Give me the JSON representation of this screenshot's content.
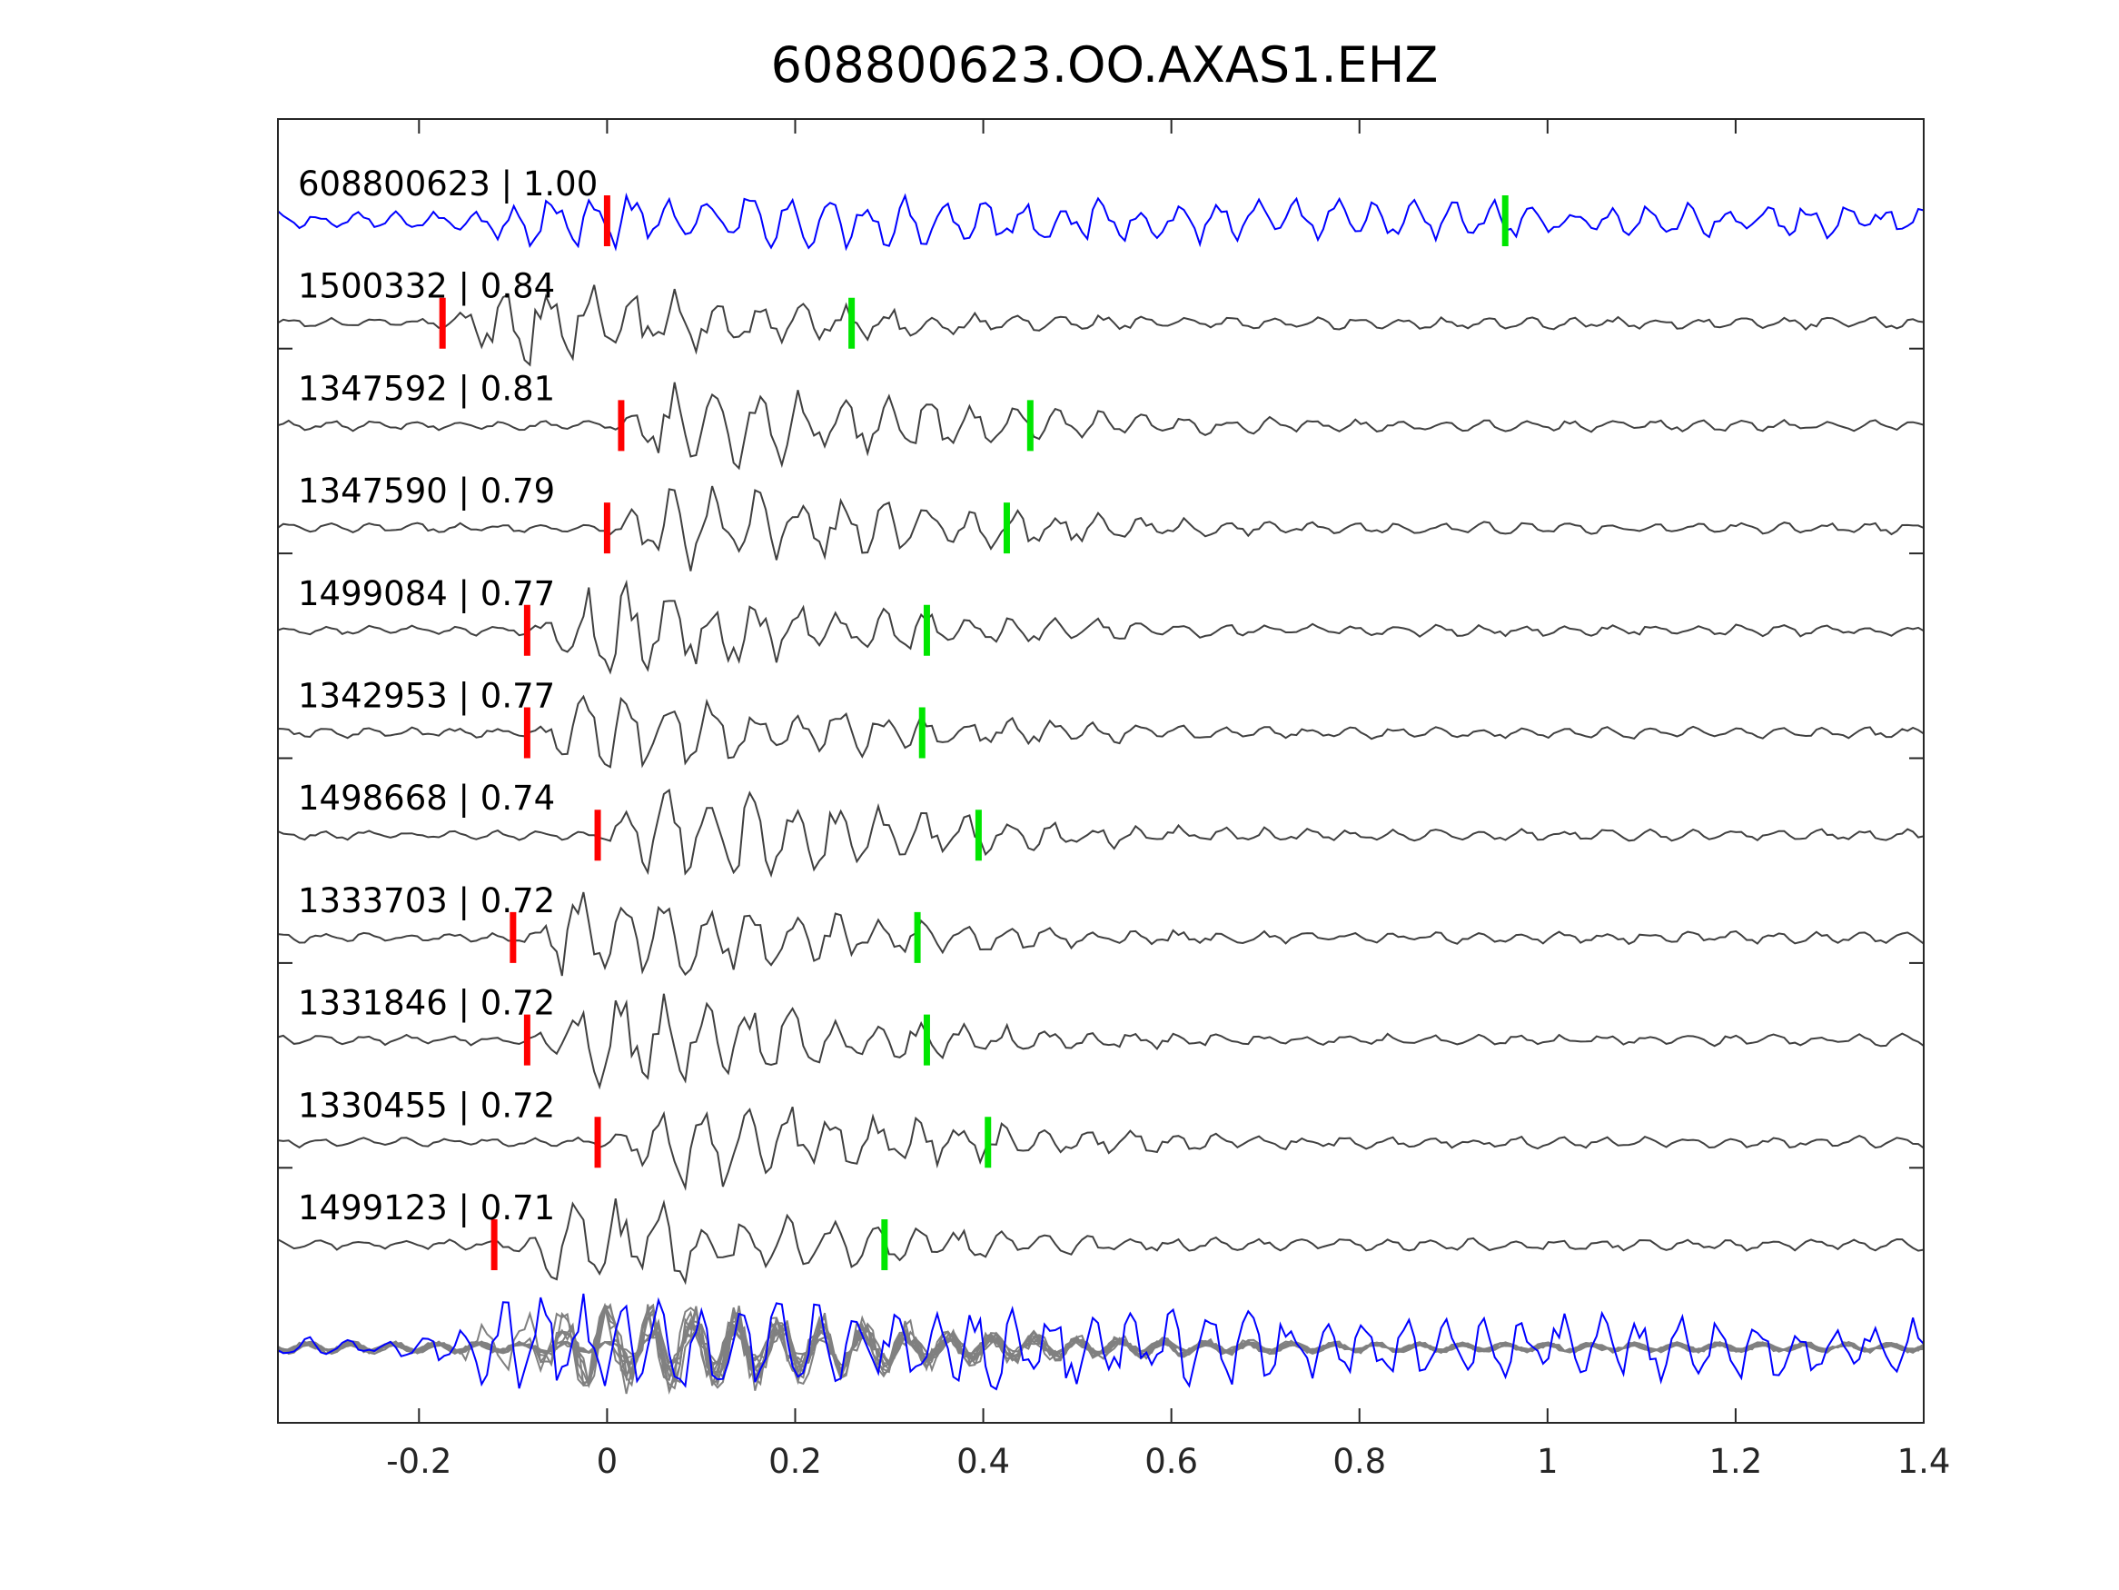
{
  "chart_data": {
    "type": "line",
    "title": "608800623.OO.AXAS1.EHZ",
    "xlabel": "",
    "ylabel": "",
    "xlim": [
      -0.35,
      1.4
    ],
    "xticks": [
      -0.2,
      0,
      0.2,
      0.4,
      0.6,
      0.8,
      1,
      1.2,
      1.4
    ],
    "xtick_labels": [
      "-0.2",
      "0",
      "0.2",
      "0.4",
      "0.6",
      "0.8",
      "1",
      "1.2",
      "1.4"
    ],
    "grid": false,
    "colors": {
      "reference_trace": "#0000ff",
      "template_trace": "#404040",
      "stack_trace": "#808080",
      "p_pick": "#ff0000",
      "s_pick": "#00e600"
    },
    "traces": [
      {
        "label": "608800623 | 1.00",
        "id": "608800623",
        "cc": 1.0,
        "p_pick": 0.0,
        "s_pick": 0.955,
        "onset": -0.16,
        "reference": true
      },
      {
        "label": "1500332 | 0.84",
        "id": "1500332",
        "cc": 0.84,
        "p_pick": -0.175,
        "s_pick": 0.26,
        "onset": -0.17
      },
      {
        "label": "1347592 | 0.81",
        "id": "1347592",
        "cc": 0.81,
        "p_pick": 0.015,
        "s_pick": 0.45,
        "onset": 0.01
      },
      {
        "label": "1347590 | 0.79",
        "id": "1347590",
        "cc": 0.79,
        "p_pick": 0.0,
        "s_pick": 0.425,
        "onset": 0.0
      },
      {
        "label": "1499084 | 0.77",
        "id": "1499084",
        "cc": 0.77,
        "p_pick": -0.085,
        "s_pick": 0.34,
        "onset": -0.08
      },
      {
        "label": "1342953 | 0.77",
        "id": "1342953",
        "cc": 0.77,
        "p_pick": -0.085,
        "s_pick": 0.335,
        "onset": -0.08
      },
      {
        "label": "1498668 | 0.74",
        "id": "1498668",
        "cc": 0.74,
        "p_pick": -0.01,
        "s_pick": 0.395,
        "onset": -0.01
      },
      {
        "label": "1333703 | 0.72",
        "id": "1333703",
        "cc": 0.72,
        "p_pick": -0.1,
        "s_pick": 0.33,
        "onset": -0.1
      },
      {
        "label": "1331846 | 0.72",
        "id": "1331846",
        "cc": 0.72,
        "p_pick": -0.085,
        "s_pick": 0.34,
        "onset": -0.085
      },
      {
        "label": "1330455 | 0.72",
        "id": "1330455",
        "cc": 0.72,
        "p_pick": -0.01,
        "s_pick": 0.405,
        "onset": -0.01
      },
      {
        "label": "1499123 | 0.71",
        "id": "1499123",
        "cc": 0.71,
        "p_pick": -0.12,
        "s_pick": 0.295,
        "onset": -0.11
      }
    ],
    "stack": {
      "onset": -0.18
    }
  }
}
